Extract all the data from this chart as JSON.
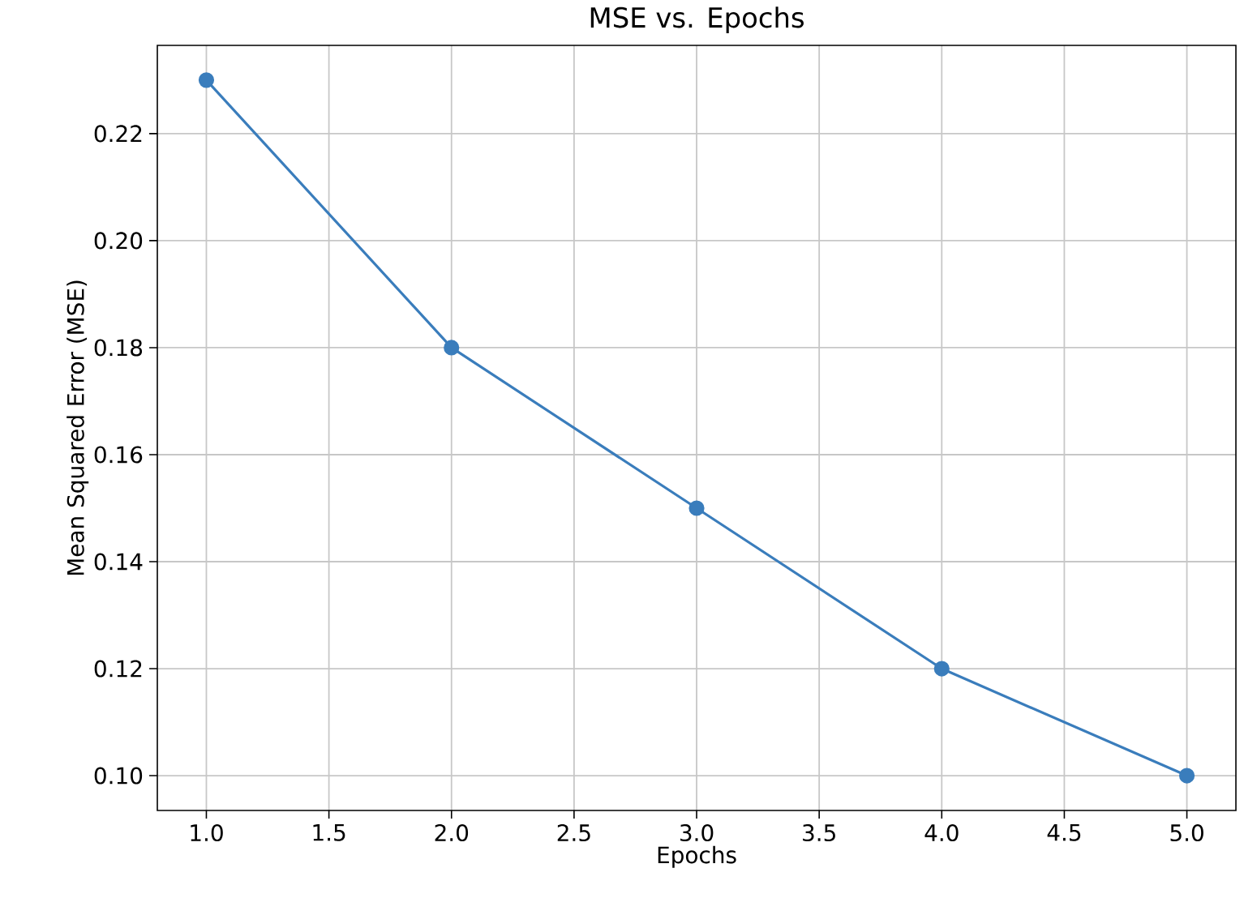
{
  "chart_data": {
    "type": "line",
    "title": "MSE vs. Epochs",
    "xlabel": "Epochs",
    "ylabel": "Mean Squared Error (MSE)",
    "x": [
      1,
      2,
      3,
      4,
      5
    ],
    "series": [
      {
        "color": "#3a7dbc",
        "values": [
          0.23,
          0.18,
          0.15,
          0.12,
          0.1
        ]
      }
    ],
    "xlim": [
      0.8,
      5.2
    ],
    "ylim": [
      0.0935,
      0.2365
    ],
    "xticks": [
      {
        "value": 1,
        "label": "1.0"
      },
      {
        "value": 1.5,
        "label": "1.5"
      },
      {
        "value": 2,
        "label": "2.0"
      },
      {
        "value": 2.5,
        "label": "2.5"
      },
      {
        "value": 3,
        "label": "3.0"
      },
      {
        "value": 3.5,
        "label": "3.5"
      },
      {
        "value": 4,
        "label": "4.0"
      },
      {
        "value": 4.5,
        "label": "4.5"
      },
      {
        "value": 5,
        "label": "5.0"
      }
    ],
    "yticks": [
      {
        "value": 0.1,
        "label": "0.10"
      },
      {
        "value": 0.12,
        "label": "0.12"
      },
      {
        "value": 0.14,
        "label": "0.14"
      },
      {
        "value": 0.16,
        "label": "0.16"
      },
      {
        "value": 0.18,
        "label": "0.18"
      },
      {
        "value": 0.2,
        "label": "0.20"
      },
      {
        "value": 0.22,
        "label": "0.22"
      }
    ],
    "grid": true,
    "marker": "circle",
    "line_style": "solid"
  }
}
